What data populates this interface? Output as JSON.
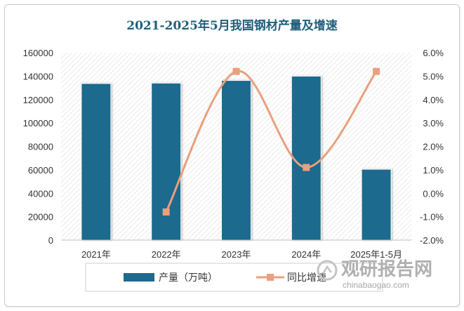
{
  "chart_data": {
    "type": "bar+line",
    "title": "2021-2025年5月我国钢材产量及增速",
    "categories": [
      "2021年",
      "2022年",
      "2023年",
      "2024年",
      "2025年1-5月"
    ],
    "series": [
      {
        "name": "产量（万吨）",
        "type": "bar",
        "axis": "left",
        "color": "#1e6a8d",
        "values": [
          133667,
          134034,
          136268,
          139967,
          60467
        ]
      },
      {
        "name": "同比增速",
        "type": "line",
        "axis": "right",
        "color": "#e8a07e",
        "values": [
          null,
          -0.8,
          5.2,
          1.1,
          5.2
        ]
      }
    ],
    "y_left": {
      "min": 0,
      "max": 160000,
      "step": 20000,
      "ticks": [
        "0",
        "20000",
        "40000",
        "60000",
        "80000",
        "100000",
        "120000",
        "140000",
        "160000"
      ]
    },
    "y_right": {
      "min": -2.0,
      "max": 6.0,
      "step": 1.0,
      "ticks": [
        "-2.0%",
        "-1.0%",
        "0.0%",
        "1.0%",
        "2.0%",
        "3.0%",
        "4.0%",
        "5.0%",
        "6.0%"
      ]
    },
    "grid": false,
    "plot_background": "hatched",
    "legend_position": "bottom"
  },
  "watermark": {
    "cn": "观研报告网",
    "en": "chinabaogao.com"
  }
}
